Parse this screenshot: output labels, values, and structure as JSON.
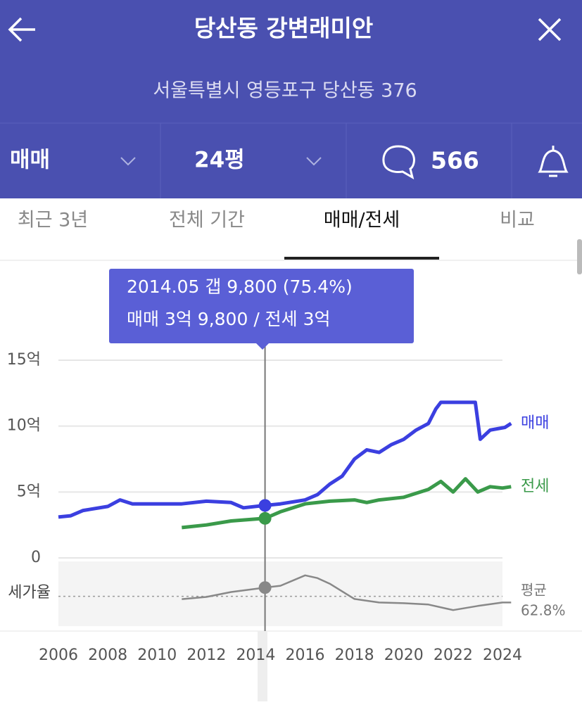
{
  "header": {
    "title": "당산동 강변래미안",
    "address": "서울특별시 영등포구 당산동 376"
  },
  "filters": {
    "deal_type": "매매",
    "size": "24평",
    "comments": 566
  },
  "tabs": [
    "최근 3년",
    "전체 기간",
    "매매/전세",
    "비교"
  ],
  "chart_data": {
    "type": "line",
    "tooltip": [
      "2014.05  갭 9,800 (75.4%)",
      "매매 3억 9,800 / 전세 3억"
    ],
    "xlim": [
      2006,
      2024
    ],
    "xticks": [
      2006,
      2008,
      2010,
      2012,
      2014,
      2016,
      2018,
      2020,
      2022,
      2024
    ],
    "ylim": [
      0,
      15
    ],
    "yticks": [
      0,
      {
        "value": 5,
        "label": "5억"
      },
      {
        "value": 10,
        "label": "10억"
      },
      {
        "value": 15,
        "label": "15억"
      }
    ],
    "grid": true,
    "series": [
      {
        "name": "매매",
        "color": "#3b3fe0",
        "x": [
          2006.0,
          2006.5,
          2007.0,
          2008.0,
          2008.5,
          2009.0,
          2010.0,
          2011.0,
          2012.0,
          2013.0,
          2013.5,
          2014.375,
          2015.0,
          2016.0,
          2016.5,
          2017.0,
          2017.5,
          2018.0,
          2018.5,
          2019.0,
          2019.5,
          2020.0,
          2020.5,
          2021.0,
          2021.3,
          2021.5,
          2022.0,
          2022.9,
          2023.1,
          2023.5,
          2024.1,
          2024.35
        ],
        "values": [
          3.1,
          3.2,
          3.6,
          3.9,
          4.4,
          4.1,
          4.1,
          4.1,
          4.3,
          4.2,
          3.8,
          3.98,
          4.1,
          4.4,
          4.8,
          5.6,
          6.2,
          7.5,
          8.2,
          8.0,
          8.6,
          9.0,
          9.7,
          10.2,
          11.3,
          11.8,
          11.8,
          11.8,
          9.0,
          9.7,
          9.9,
          10.2
        ]
      },
      {
        "name": "전세",
        "color": "#3a9a4a",
        "x": [
          2011.0,
          2012.0,
          2013.0,
          2014.375,
          2015.0,
          2016.0,
          2017.0,
          2018.0,
          2018.5,
          2019.0,
          2020.0,
          2021.0,
          2021.5,
          2022.0,
          2022.5,
          2023.0,
          2023.5,
          2024.0,
          2024.35
        ],
        "values": [
          2.3,
          2.5,
          2.8,
          3.0,
          3.5,
          4.1,
          4.3,
          4.4,
          4.2,
          4.4,
          4.6,
          5.2,
          5.8,
          5.0,
          6.0,
          5.0,
          5.4,
          5.3,
          5.4
        ]
      }
    ],
    "cursor": {
      "x": 2014.375,
      "sale": 3.98,
      "jeonse": 3.0,
      "ratio": 75.4
    },
    "ratio": {
      "label": "세가율",
      "color": "#888888",
      "ylim": [
        20,
        113
      ],
      "x": [
        2011.0,
        2012.0,
        2013.0,
        2014.375,
        2015.0,
        2016.0,
        2016.5,
        2017.0,
        2018.0,
        2019.0,
        2020.0,
        2021.0,
        2022.0,
        2023.0,
        2024.0,
        2024.35
      ],
      "values": [
        58.8,
        62,
        69,
        75.4,
        78,
        93,
        89,
        81,
        59,
        54,
        53,
        51,
        43,
        49,
        54,
        54
      ],
      "average_label": "평균",
      "average": {
        "value": 62.8,
        "label": "62.8%"
      }
    }
  }
}
